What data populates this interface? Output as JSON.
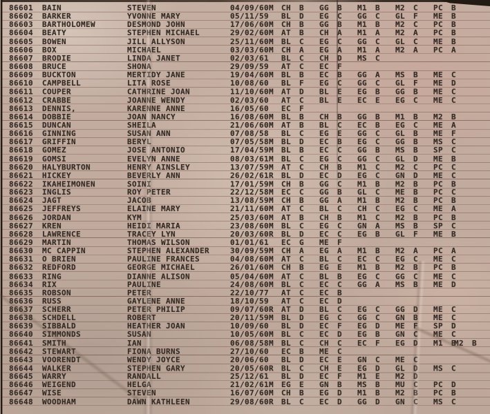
{
  "document": {
    "kind": "scanned typewritten grade register",
    "colors": {
      "paper": "#c2aca0",
      "ink": "#352d26",
      "rule": "#684637"
    },
    "columns": [
      "student-number",
      "surname",
      "given-names",
      "date-of-birth",
      "flag",
      "subject-grades"
    ]
  },
  "rows": [
    {
      "id": "86601",
      "surname": "BAIN",
      "given": "STEVEN",
      "dob": "04/09/60",
      "flag": "M",
      "subjects": [
        [
          "CH",
          "B"
        ],
        [
          "GG",
          "B"
        ],
        [
          "M1",
          "B"
        ],
        [
          "M2",
          "C"
        ],
        [
          "PC",
          "B"
        ]
      ]
    },
    {
      "id": "86602",
      "surname": "BARKER",
      "given": "YVONNE MARY",
      "dob": "05/11/59",
      "flag": "",
      "subjects": [
        [
          "BL",
          "D"
        ],
        [
          "EG",
          "C"
        ],
        [
          "GG",
          "C"
        ],
        [
          "GL",
          "F"
        ],
        [
          "ME",
          "B"
        ]
      ]
    },
    {
      "id": "86603",
      "surname": "BARTHOLOMEW",
      "given": "DESMOND JOHN",
      "dob": "17/06/60",
      "flag": "M",
      "subjects": [
        [
          "CH",
          "B"
        ],
        [
          "GG",
          "B"
        ],
        [
          "M1",
          "B"
        ],
        [
          "M2",
          "C"
        ],
        [
          "PC",
          "B"
        ]
      ]
    },
    {
      "id": "86604",
      "surname": "BEATY",
      "given": "STEPHEN MICHAEL",
      "dob": "29/02/60",
      "flag": "M",
      "subjects": [
        [
          "AT",
          "B"
        ],
        [
          "CH",
          "A"
        ],
        [
          "M1",
          "A"
        ],
        [
          "M2",
          "A"
        ],
        [
          "PC",
          "B"
        ]
      ]
    },
    {
      "id": "86605",
      "surname": "BOWEN",
      "given": "JILL ALLYSON",
      "dob": "25/11/60",
      "flag": "M",
      "subjects": [
        [
          "BL",
          "C"
        ],
        [
          "EG",
          "C"
        ],
        [
          "GG",
          "C"
        ],
        [
          "GL",
          "C"
        ],
        [
          "ME",
          "B"
        ]
      ]
    },
    {
      "id": "86606",
      "surname": "BOX",
      "given": "MICHAEL",
      "dob": "03/03/60",
      "flag": "M",
      "subjects": [
        [
          "CH",
          "A"
        ],
        [
          "EG",
          "A"
        ],
        [
          "M1",
          "A"
        ],
        [
          "M2",
          "A"
        ],
        [
          "PC",
          "A"
        ]
      ]
    },
    {
      "id": "86607",
      "surname": "BRODIE",
      "given": "LINDA JANET",
      "dob": "02/03/61",
      "flag": "",
      "subjects": [
        [
          "BL",
          "C"
        ],
        [
          "CH",
          "D"
        ],
        [
          "MS",
          "C"
        ]
      ]
    },
    {
      "id": "86608",
      "surname": "BRUCE",
      "given": "SHONA",
      "dob": "29/09/59",
      "flag": "",
      "subjects": [
        [
          "AT",
          "C"
        ],
        [
          "EC",
          "F"
        ]
      ]
    },
    {
      "id": "86609",
      "surname": "BUCKTON",
      "given": "MERTIDY JANE",
      "dob": "19/04/60",
      "flag": "M",
      "subjects": [
        [
          "BL",
          "B"
        ],
        [
          "EC",
          "B"
        ],
        [
          "GG",
          "A"
        ],
        [
          "MS",
          "B"
        ],
        [
          "ME",
          "C"
        ]
      ]
    },
    {
      "id": "86610",
      "surname": "CAMPBELL",
      "given": "LITA ROSE",
      "dob": "10/08/60",
      "flag": "",
      "subjects": [
        [
          "BL",
          "F"
        ],
        [
          "EG",
          "C"
        ],
        [
          "GG",
          "C"
        ],
        [
          "GL",
          "F"
        ],
        [
          "ME",
          "D"
        ]
      ]
    },
    {
      "id": "86611",
      "surname": "COUPER",
      "given": "CATHRINE JOAN",
      "dob": "11/10/60",
      "flag": "M",
      "subjects": [
        [
          "AT",
          "D"
        ],
        [
          "BL",
          "E"
        ],
        [
          "EG",
          "B"
        ],
        [
          "GG",
          "B"
        ],
        [
          "ME",
          "C"
        ]
      ]
    },
    {
      "id": "86612",
      "surname": "CRABBE",
      "given": "JOANNE WENDY",
      "dob": "02/03/60",
      "flag": "",
      "subjects": [
        [
          "AT",
          "C"
        ],
        [
          "BL",
          "E"
        ],
        [
          "EC",
          "E"
        ],
        [
          "EG",
          "C"
        ],
        [
          "ME",
          "C"
        ]
      ]
    },
    {
      "id": "86613",
      "surname": "DENNIS,",
      "given": "KARENNE ANNE",
      "dob": "16/05/60",
      "flag": "",
      "subjects": [
        [
          "EC",
          "F"
        ]
      ]
    },
    {
      "id": "86614",
      "surname": "DOBBIE",
      "given": "JOAN NANCY",
      "dob": "16/08/60",
      "flag": "M",
      "subjects": [
        [
          "BL",
          "B"
        ],
        [
          "CH",
          "B"
        ],
        [
          "GG",
          "B"
        ],
        [
          "M1",
          "B"
        ],
        [
          "M2",
          "B"
        ]
      ]
    },
    {
      "id": "86615",
      "surname": "DUNCAN",
      "given": "SHEILA",
      "dob": "21/06/60",
      "flag": "M",
      "subjects": [
        [
          "AT",
          "B"
        ],
        [
          "BL",
          "C"
        ],
        [
          "EC",
          "B"
        ],
        [
          "EG",
          "C"
        ],
        [
          "ME",
          "A"
        ]
      ]
    },
    {
      "id": "86616",
      "surname": "GINNING",
      "given": "SUSAN ANN",
      "dob": "07/08/58",
      "flag": "",
      "subjects": [
        [
          "BL",
          "C"
        ],
        [
          "EG",
          "E"
        ],
        [
          "GG",
          "C"
        ],
        [
          "GL",
          "B"
        ],
        [
          "ME",
          "F"
        ]
      ]
    },
    {
      "id": "86617",
      "surname": "GRIFFIN",
      "given": "BERYL",
      "dob": "07/05/58",
      "flag": "M",
      "subjects": [
        [
          "BL",
          "D"
        ],
        [
          "EC",
          "B"
        ],
        [
          "EG",
          "C"
        ],
        [
          "GG",
          "B"
        ],
        [
          "MS",
          "C"
        ]
      ]
    },
    {
      "id": "86618",
      "surname": "GOMEZ",
      "given": "JOSE ANTONIO",
      "dob": "17/04/59",
      "flag": "M",
      "subjects": [
        [
          "BL",
          "B"
        ],
        [
          "EC",
          "C"
        ],
        [
          "GG",
          "B"
        ],
        [
          "MS",
          "B"
        ],
        [
          "SP",
          "C"
        ]
      ]
    },
    {
      "id": "86619",
      "surname": "GOMSI",
      "given": "EVELYN ANNE",
      "dob": "08/03/61",
      "flag": "M",
      "subjects": [
        [
          "BL",
          "C"
        ],
        [
          "EG",
          "C"
        ],
        [
          "GG",
          "C"
        ],
        [
          "GL",
          "D"
        ],
        [
          "ME",
          "B"
        ]
      ]
    },
    {
      "id": "86620",
      "surname": "HALYBURTON",
      "given": "HENRY AINSLEY",
      "dob": "13/07/59",
      "flag": "M",
      "subjects": [
        [
          "AT",
          "C"
        ],
        [
          "CH",
          "B"
        ],
        [
          "M1",
          "C"
        ],
        [
          "M2",
          "C"
        ],
        [
          "PC",
          "C"
        ]
      ]
    },
    {
      "id": "86621",
      "surname": "HICKEY",
      "given": "BEVERLY ANN",
      "dob": "26/02/61",
      "flag": "R",
      "subjects": [
        [
          "BL",
          "D"
        ],
        [
          "EC",
          "D"
        ],
        [
          "EG",
          "C"
        ],
        [
          "GN",
          "D"
        ],
        [
          "ME",
          "C"
        ]
      ]
    },
    {
      "id": "86622",
      "surname": "IKAHEIMONEN",
      "given": "SOINI",
      "dob": "17/01/59",
      "flag": "M",
      "subjects": [
        [
          "CH",
          "B"
        ],
        [
          "GG",
          "C"
        ],
        [
          "M1",
          "B"
        ],
        [
          "M2",
          "B"
        ],
        [
          "PC",
          "B"
        ]
      ]
    },
    {
      "id": "86623",
      "surname": "INGLIS",
      "given": "ROY PETER",
      "dob": "22/12/58",
      "flag": "M",
      "subjects": [
        [
          "EC",
          "C"
        ],
        [
          "GG",
          "B"
        ],
        [
          "GL",
          "C"
        ],
        [
          "ME",
          "B"
        ],
        [
          "PC",
          "C"
        ]
      ]
    },
    {
      "id": "86624",
      "surname": "JAGT",
      "given": "JACOB",
      "dob": "13/08/59",
      "flag": "M",
      "subjects": [
        [
          "CH",
          "B"
        ],
        [
          "GG",
          "A"
        ],
        [
          "M1",
          "B"
        ],
        [
          "M2",
          "B"
        ],
        [
          "PC",
          "B"
        ]
      ]
    },
    {
      "id": "86625",
      "surname": "JEFFREYS",
      "given": "ELAINE MARY",
      "dob": "21/11/60",
      "flag": "M",
      "subjects": [
        [
          "AT",
          "C"
        ],
        [
          "BL",
          "C"
        ],
        [
          "CH",
          "C"
        ],
        [
          "EG",
          "C"
        ],
        [
          "ME",
          "A"
        ]
      ]
    },
    {
      "id": "86626",
      "surname": "JORDAN",
      "given": "KYM",
      "dob": "25/03/60",
      "flag": "M",
      "subjects": [
        [
          "AT",
          "B"
        ],
        [
          "CH",
          "B"
        ],
        [
          "M1",
          "C"
        ],
        [
          "M2",
          "B"
        ],
        [
          "PC",
          "B"
        ]
      ]
    },
    {
      "id": "86627",
      "surname": "KREN",
      "given": "HEIDI MARIA",
      "dob": "23/08/60",
      "flag": "M",
      "subjects": [
        [
          "BL",
          "C"
        ],
        [
          "EG",
          "C"
        ],
        [
          "GN",
          "A"
        ],
        [
          "MS",
          "B"
        ],
        [
          "SP",
          "C"
        ]
      ]
    },
    {
      "id": "86628",
      "surname": "LAWRENCE",
      "given": "TRACEY LYN",
      "dob": "20/03/60",
      "flag": "R",
      "subjects": [
        [
          "BL",
          "D"
        ],
        [
          "EC",
          "C"
        ],
        [
          "EG",
          "B"
        ],
        [
          "GL",
          "F"
        ],
        [
          "ME",
          "B"
        ]
      ]
    },
    {
      "id": "86629",
      "surname": "MARTIN",
      "given": "THOMAS WILSON",
      "dob": "01/01/61",
      "flag": "",
      "subjects": [
        [
          "EC",
          "G"
        ],
        [
          "ME",
          "F"
        ]
      ]
    },
    {
      "id": "86630",
      "surname": "MC CAPPIN",
      "given": "STEPHEN ALEXANDER",
      "dob": "30/09/59",
      "flag": "M",
      "subjects": [
        [
          "CH",
          "A"
        ],
        [
          "EG",
          "A"
        ],
        [
          "M1",
          "B"
        ],
        [
          "M2",
          "A"
        ],
        [
          "PC",
          "A"
        ]
      ]
    },
    {
      "id": "86631",
      "surname": "O BRIEN",
      "given": "PAULINE FRANCES",
      "dob": "04/08/60",
      "flag": "M",
      "subjects": [
        [
          "AT",
          "C"
        ],
        [
          "BL",
          "C"
        ],
        [
          "EC",
          "C"
        ],
        [
          "EG",
          "C"
        ],
        [
          "ME",
          "C"
        ]
      ]
    },
    {
      "id": "86632",
      "surname": "REDFORD",
      "given": "GEORGE MICHAEL",
      "dob": "26/01/60",
      "flag": "M",
      "subjects": [
        [
          "CH",
          "B"
        ],
        [
          "EG",
          "E"
        ],
        [
          "M1",
          "B"
        ],
        [
          "M2",
          "B"
        ],
        [
          "PC",
          "B"
        ]
      ]
    },
    {
      "id": "86633",
      "surname": "RING",
      "given": "DIANNE ALISON",
      "dob": "05/04/60",
      "flag": "M",
      "subjects": [
        [
          "AT",
          "C"
        ],
        [
          "BL",
          "B"
        ],
        [
          "EG",
          "C"
        ],
        [
          "GG",
          "C"
        ],
        [
          "ME",
          "C"
        ]
      ]
    },
    {
      "id": "86634",
      "surname": "RIX",
      "given": "PAULINE",
      "dob": "24/08/60",
      "flag": "M",
      "subjects": [
        [
          "BL",
          "C"
        ],
        [
          "EC",
          "C"
        ],
        [
          "GG",
          "A"
        ],
        [
          "MS",
          "B"
        ],
        [
          "ME",
          "D"
        ]
      ]
    },
    {
      "id": "86635",
      "surname": "ROBSON",
      "given": "PETER",
      "dob": "22/10/77",
      "flag": "",
      "subjects": [
        [
          "AT",
          "C"
        ],
        [
          "EC",
          "B"
        ]
      ]
    },
    {
      "id": "86636",
      "surname": "RUSS",
      "given": "GAYLENE ANNE",
      "dob": "18/10/59",
      "flag": "",
      "subjects": [
        [
          "AT",
          "C"
        ],
        [
          "EC",
          "D"
        ]
      ]
    },
    {
      "id": "86637",
      "surname": "SCHERR",
      "given": "PETER PHILIP",
      "dob": "09/07/60",
      "flag": "R",
      "subjects": [
        [
          "AT",
          "D"
        ],
        [
          "BL",
          "C"
        ],
        [
          "EG",
          "C"
        ],
        [
          "GG",
          "D"
        ],
        [
          "ME",
          "C"
        ]
      ]
    },
    {
      "id": "86638",
      "surname": "SCHDELL",
      "given": "ROBERT",
      "dob": "20/11/59",
      "flag": "M",
      "subjects": [
        [
          "BL",
          "D"
        ],
        [
          "EG",
          "C"
        ],
        [
          "GG",
          "C"
        ],
        [
          "GN",
          "B"
        ],
        [
          "ME",
          "C"
        ]
      ]
    },
    {
      "id": "86639",
      "surname": "SIBBALD",
      "given": "HEATHER JOAN",
      "dob": "10/09/60",
      "flag": "",
      "subjects": [
        [
          "BL",
          "D"
        ],
        [
          "EC",
          "F"
        ],
        [
          "EG",
          "D"
        ],
        [
          "ME",
          "F"
        ],
        [
          "SP",
          "D"
        ]
      ]
    },
    {
      "id": "86640",
      "surname": "SIMMONDS",
      "given": "SUSAN",
      "dob": "10/05/60",
      "flag": "M",
      "subjects": [
        [
          "BL",
          "C"
        ],
        [
          "EC",
          "D"
        ],
        [
          "EG",
          "B"
        ],
        [
          "GN",
          "C"
        ],
        [
          "ME",
          "C"
        ]
      ]
    },
    {
      "id": "86641",
      "surname": "SMITH",
      "given": "IAN",
      "dob": "06/08/58",
      "flag": "M",
      "subjects": [
        [
          "BL",
          "C"
        ],
        [
          "CH",
          "C"
        ],
        [
          "EC",
          "F"
        ],
        [
          "EG",
          "D"
        ],
        [
          "M1",
          "B"
        ],
        [
          "M2",
          "B"
        ]
      ]
    },
    {
      "id": "86642",
      "surname": "STEWART",
      "given": "FIONA BURNS",
      "dob": "27/10/60",
      "flag": "",
      "subjects": [
        [
          "EC",
          "B"
        ],
        [
          "ME",
          "C"
        ]
      ]
    },
    {
      "id": "86643",
      "surname": "VOORENDT",
      "given": "WENDY JOYCE",
      "dob": "20/06/60",
      "flag": "",
      "subjects": [
        [
          "BL",
          "D"
        ],
        [
          "EC",
          "E"
        ],
        [
          "GN",
          "C"
        ],
        [
          "ME",
          "C"
        ]
      ]
    },
    {
      "id": "86644",
      "surname": "WALKER",
      "given": "STEPHEN GARY",
      "dob": "20/05/60",
      "flag": "R",
      "subjects": [
        [
          "BL",
          "C"
        ],
        [
          "CH",
          "E"
        ],
        [
          "EG",
          "D"
        ],
        [
          "GL",
          "D"
        ],
        [
          "MS",
          "C"
        ]
      ]
    },
    {
      "id": "86645",
      "surname": "WARRY",
      "given": "RANDALL",
      "dob": "25/12/61",
      "flag": "",
      "subjects": [
        [
          "BL",
          "D"
        ],
        [
          "EC",
          "F"
        ],
        [
          "M1",
          "E"
        ],
        [
          "M2",
          "D"
        ]
      ]
    },
    {
      "id": "86646",
      "surname": "WEIGEND",
      "given": "HELGA",
      "dob": "21/02/61",
      "flag": "M",
      "subjects": [
        [
          "EG",
          "E"
        ],
        [
          "GN",
          "B"
        ],
        [
          "MS",
          "B"
        ],
        [
          "MU",
          "C"
        ],
        [
          "PC",
          "D"
        ]
      ]
    },
    {
      "id": "86647",
      "surname": "WISE",
      "given": "STEVEN",
      "dob": "16/07/60",
      "flag": "M",
      "subjects": [
        [
          "CH",
          "B"
        ],
        [
          "EG",
          "D"
        ],
        [
          "M1",
          "B"
        ],
        [
          "M2",
          "B"
        ],
        [
          "PC",
          "B"
        ]
      ]
    },
    {
      "id": "86648",
      "surname": "WOODHAM",
      "given": "DAWN KATHLEEN",
      "dob": "29/08/60",
      "flag": "R",
      "subjects": [
        [
          "BL",
          "C"
        ],
        [
          "EC",
          "D"
        ],
        [
          "GG",
          "D"
        ],
        [
          "GN",
          "C"
        ],
        [
          "MS",
          "C"
        ]
      ]
    }
  ]
}
